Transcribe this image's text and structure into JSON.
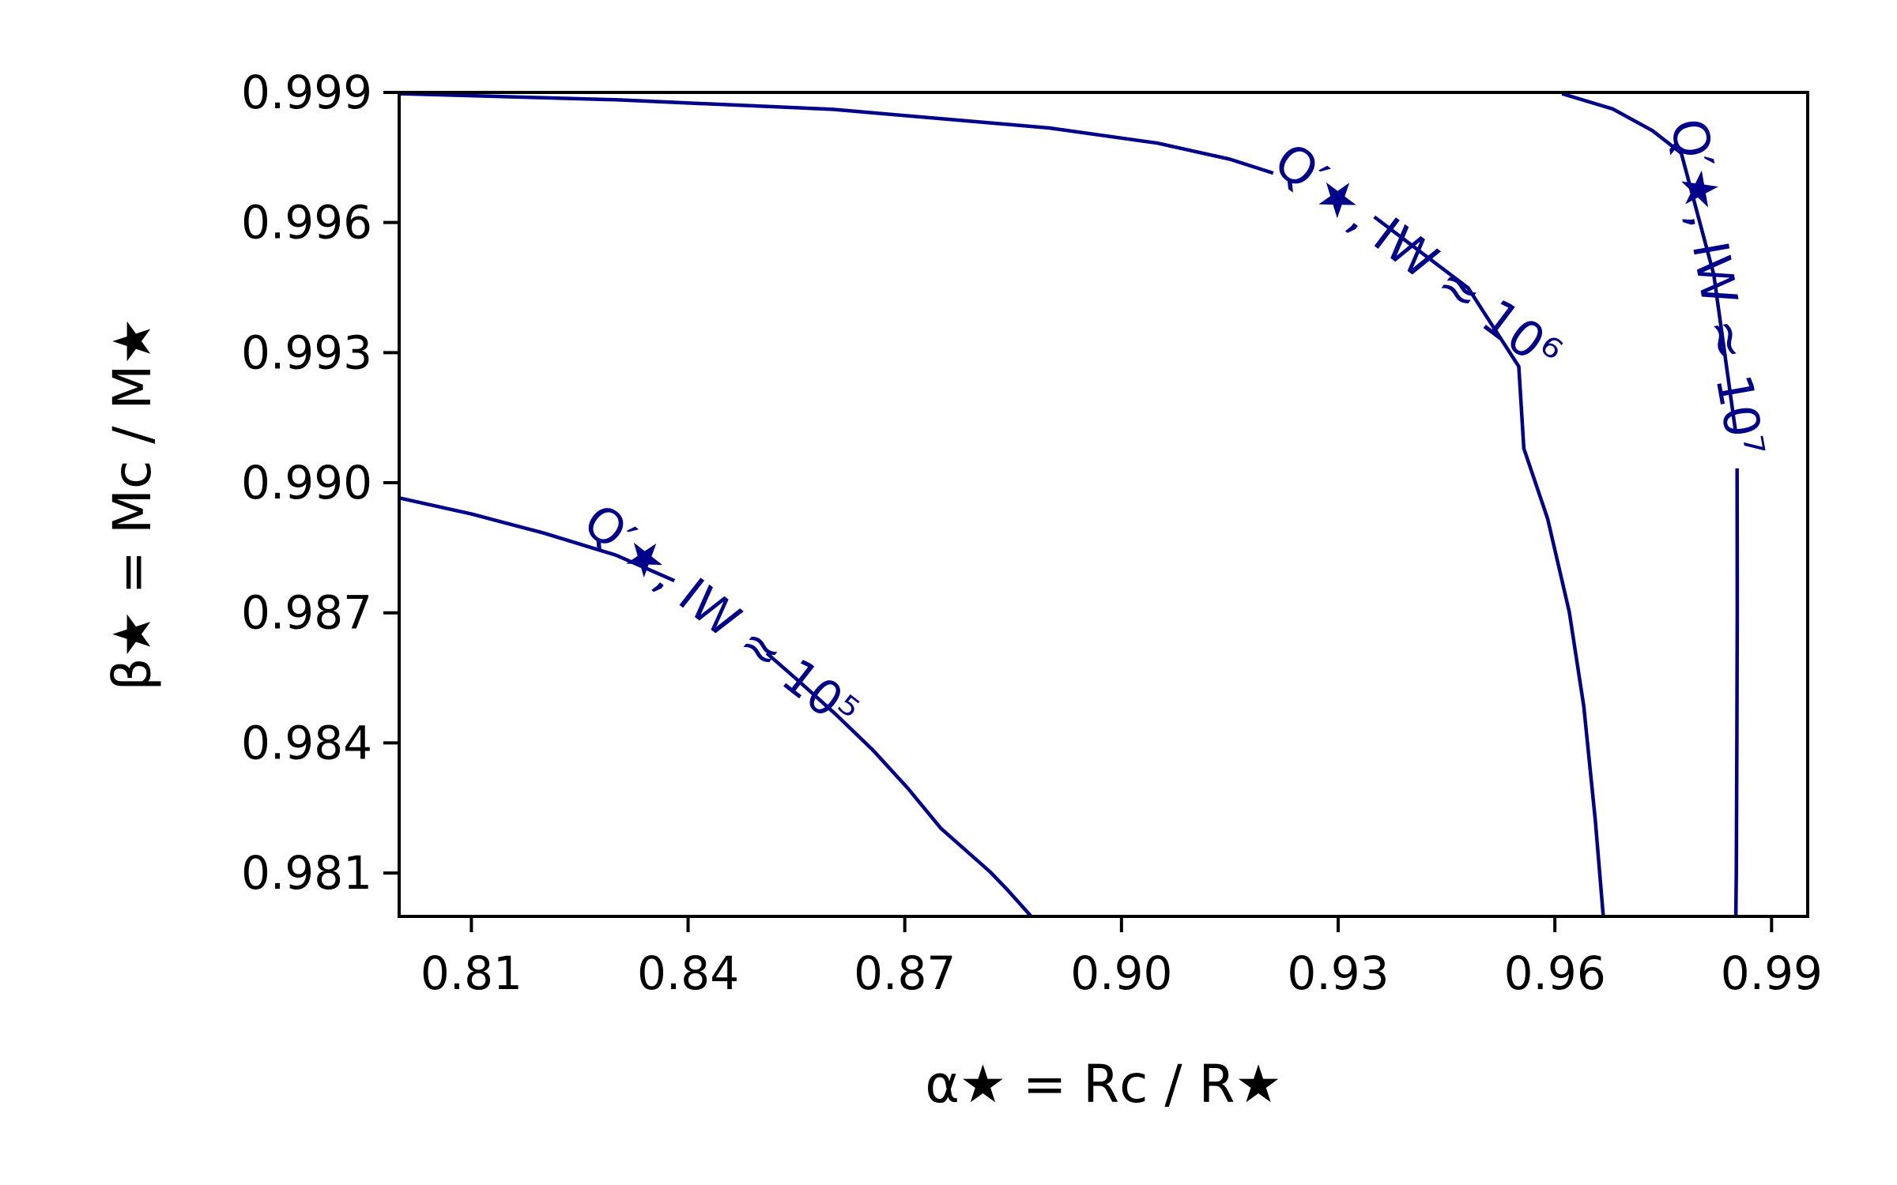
{
  "chart_data": {
    "type": "contour",
    "title": "",
    "xlabel": "α★ = Rc / R★",
    "ylabel": "β★ = Mc / M★",
    "xlim": [
      0.8,
      0.995
    ],
    "ylim": [
      0.98,
      0.999
    ],
    "grid": false,
    "legend": "none",
    "color": "#00008b",
    "xticks": [
      0.81,
      0.84,
      0.87,
      0.9,
      0.93,
      0.96,
      0.99
    ],
    "xtick_labels": [
      "0.81",
      "0.84",
      "0.87",
      "0.90",
      "0.93",
      "0.96",
      "0.99"
    ],
    "yticks": [
      0.981,
      0.984,
      0.987,
      0.99,
      0.993,
      0.996,
      0.999
    ],
    "ytick_labels": [
      "0.981",
      "0.984",
      "0.987",
      "0.990",
      "0.993",
      "0.996",
      "0.999"
    ],
    "contours": [
      {
        "label": "Q′★, IW ≈ 10⁵",
        "points": [
          [
            0.8,
            0.98965
          ],
          [
            0.81,
            0.98928
          ],
          [
            0.82,
            0.98884
          ],
          [
            0.83,
            0.98833
          ],
          [
            0.8381,
            0.98774
          ],
          [
            0.8509,
            0.98607
          ],
          [
            0.8555,
            0.9854
          ],
          [
            0.8605,
            0.98465
          ],
          [
            0.8655,
            0.98385
          ],
          [
            0.8704,
            0.98296
          ],
          [
            0.875,
            0.98203
          ],
          [
            0.8818,
            0.98103
          ],
          [
            0.884,
            0.98065
          ],
          [
            0.886,
            0.98028
          ],
          [
            0.8875,
            0.98
          ]
        ]
      },
      {
        "label": "Q′★, IW ≈ 10⁶",
        "points": [
          [
            0.8,
            0.99897
          ],
          [
            0.83,
            0.99883
          ],
          [
            0.86,
            0.99861
          ],
          [
            0.89,
            0.99818
          ],
          [
            0.905,
            0.99783
          ],
          [
            0.915,
            0.99746
          ],
          [
            0.921,
            0.99714
          ],
          [
            0.935,
            0.99613
          ],
          [
            0.948,
            0.99449
          ],
          [
            0.955,
            0.99268
          ],
          [
            0.9557,
            0.99079
          ],
          [
            0.959,
            0.98917
          ],
          [
            0.962,
            0.98702
          ],
          [
            0.964,
            0.98485
          ],
          [
            0.9656,
            0.98222
          ],
          [
            0.9667,
            0.98
          ]
        ]
      },
      {
        "label": "Q′★, IW ≈ 10⁷",
        "points": [
          [
            0.961,
            0.99897
          ],
          [
            0.968,
            0.99862
          ],
          [
            0.9735,
            0.99812
          ],
          [
            0.9775,
            0.9976
          ],
          [
            0.982,
            0.9948
          ],
          [
            0.985,
            0.9912
          ],
          [
            0.98523,
            0.99033
          ],
          [
            0.98525,
            0.987
          ],
          [
            0.9852,
            0.984
          ],
          [
            0.98512,
            0.981
          ],
          [
            0.98505,
            0.98
          ]
        ]
      }
    ]
  }
}
